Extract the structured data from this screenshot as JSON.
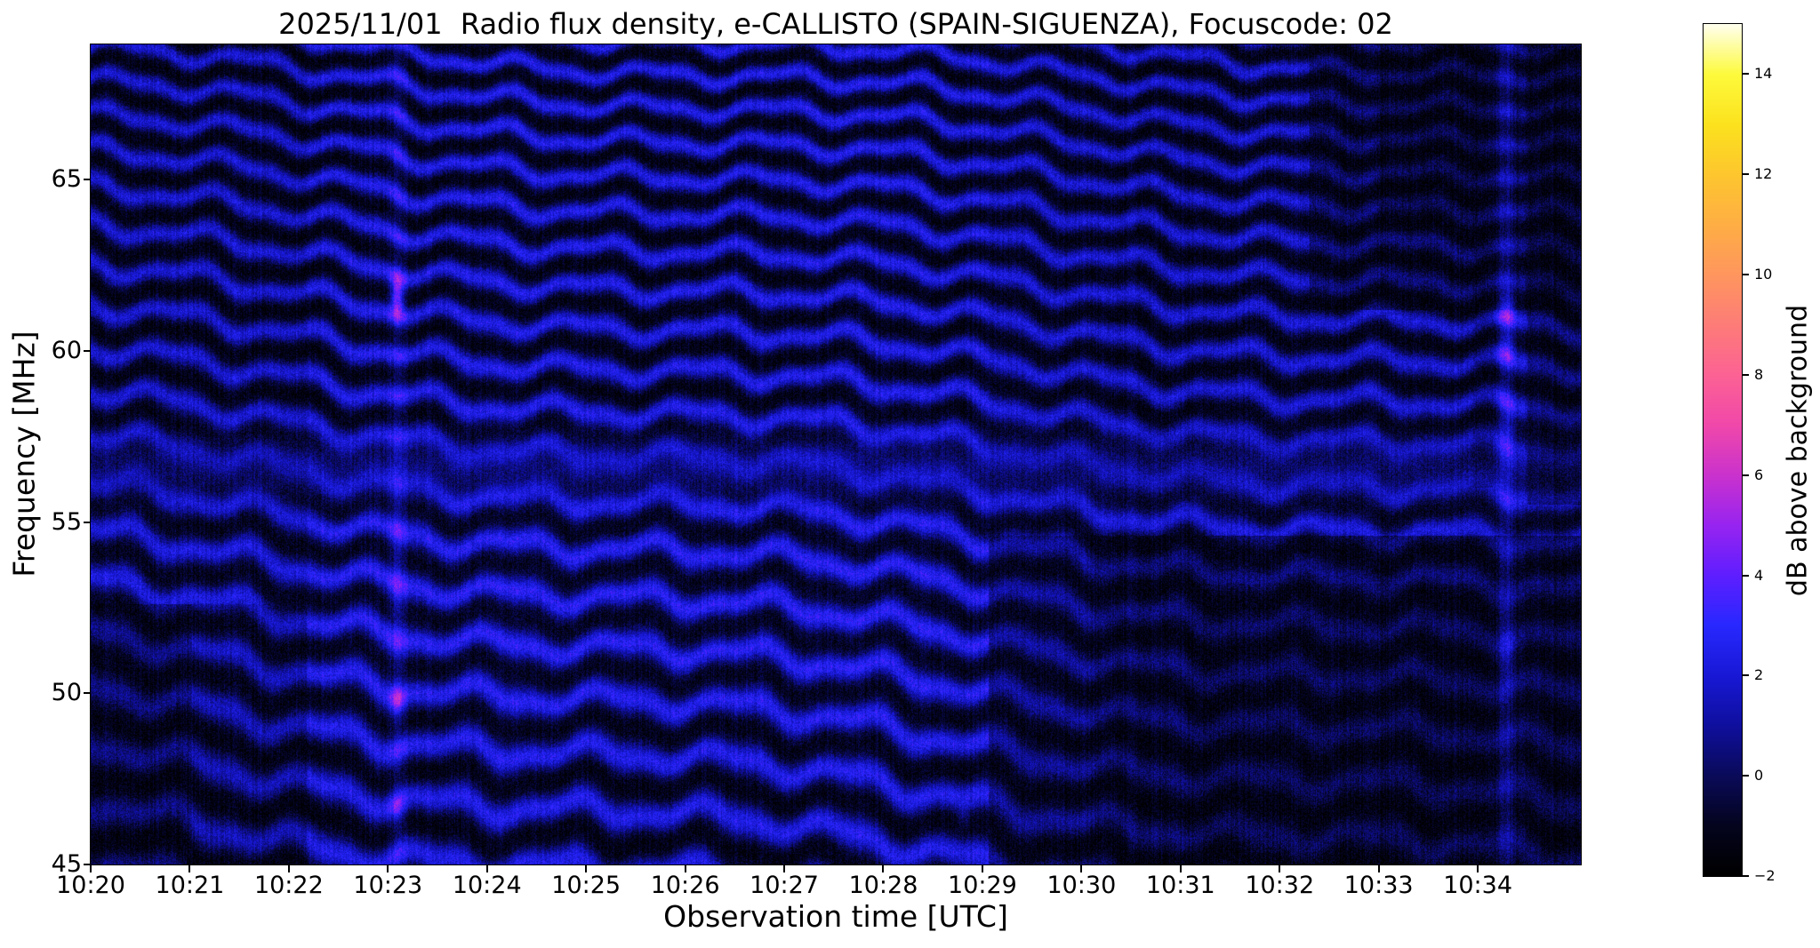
{
  "figure": {
    "background": "#ffffff",
    "text_color": "#000000"
  },
  "chart_data": {
    "type": "heatmap",
    "title": "2025/11/01  Radio flux density, e-CALLISTO (SPAIN-SIGUENZA), Focuscode: 02",
    "xlabel": "Observation time [UTC]",
    "ylabel": "Frequency [MHz]",
    "x_ticks": [
      "10:20",
      "10:21",
      "10:22",
      "10:23",
      "10:24",
      "10:25",
      "10:26",
      "10:27",
      "10:28",
      "10:29",
      "10:30",
      "10:31",
      "10:32",
      "10:33",
      "10:34"
    ],
    "x_start": "10:20",
    "x_span_min": 15.04,
    "y_ticks": [
      45,
      50,
      55,
      60,
      65
    ],
    "y_range": [
      45,
      68.95
    ],
    "grid": false,
    "legend": "none",
    "colorbar": {
      "label": "dB above background",
      "range": [
        -2,
        15
      ],
      "ticks": [
        14,
        12,
        10,
        8,
        6,
        4,
        2,
        0,
        -2
      ],
      "tick_labels": [
        "14",
        "12",
        "10",
        "8",
        "6",
        "4",
        "2",
        "0",
        "−2"
      ],
      "position": "right",
      "colormap_stops": [
        [
          -2,
          0,
          0,
          0
        ],
        [
          -1,
          4,
          4,
          30
        ],
        [
          0,
          10,
          10,
          90
        ],
        [
          1,
          15,
          15,
          158
        ],
        [
          2,
          24,
          24,
          214
        ],
        [
          3,
          40,
          40,
          255
        ],
        [
          4,
          95,
          30,
          255
        ],
        [
          5,
          152,
          36,
          240
        ],
        [
          6,
          202,
          50,
          205
        ],
        [
          7,
          240,
          72,
          170
        ],
        [
          8,
          252,
          98,
          148
        ],
        [
          9,
          253,
          124,
          120
        ],
        [
          10,
          254,
          150,
          94
        ],
        [
          11,
          254,
          174,
          68
        ],
        [
          12,
          253,
          198,
          46
        ],
        [
          13,
          252,
          226,
          30
        ],
        [
          14,
          253,
          250,
          60
        ],
        [
          15,
          255,
          255,
          238
        ]
      ]
    },
    "content_description": "Dynamic radio spectrogram dominated by wavy quasi-horizontal interference fringes (~1 MHz spacing) drifting slowly down in frequency with time, rendered in dark blue on near-black; no solar burst present.",
    "fringes": {
      "spacing_mhz_top": 0.97,
      "spacing_mhz_bottom": 1.32,
      "drift_mhz_per_min": -0.26,
      "base_db": -1.35,
      "amp_db": 3.35,
      "gamma": 1.35,
      "noise_db": 0.95,
      "column_noise_db": 0.45,
      "gain_pivot_db": -1.6,
      "wiggles": [
        {
          "amp_mhz": 0.2,
          "period_min": 1.35,
          "shear": 0.012
        },
        {
          "amp_mhz": 0.09,
          "period_min": 0.59,
          "shear": 0.006
        },
        {
          "amp_mhz": 0.24,
          "period_min": 7.4,
          "shear": 0.0015
        }
      ],
      "haze_band": {
        "center_mhz": 56.6,
        "sigma_mhz": 0.95,
        "contrast_loss": 0.6,
        "lift_db": 0.35
      },
      "bright_band": {
        "center_mhz": 52.5,
        "sigma_mhz": 4.0,
        "lift_db": 0.3
      }
    },
    "regions": [
      {
        "t0": 0.0,
        "t1": 1.02,
        "f0": 45.0,
        "f1": 52.6,
        "gain": 0.6
      },
      {
        "t0": 1.02,
        "t1": 2.18,
        "f0": 45.0,
        "f1": 52.6,
        "gain": 0.85
      },
      {
        "t0": 2.18,
        "t1": 9.06,
        "f0": 45.0,
        "f1": 69.0,
        "gain": 1.12
      },
      {
        "t0": 9.06,
        "t1": 15.05,
        "f0": 45.0,
        "f1": 54.6,
        "gain": 0.68
      },
      {
        "t0": 10.13,
        "t1": 15.05,
        "f0": 45.0,
        "f1": 54.6,
        "gain": 0.78
      },
      {
        "t0": 11.12,
        "t1": 15.05,
        "f0": 45.0,
        "f1": 53.2,
        "gain": 0.82
      },
      {
        "t0": 12.3,
        "t1": 15.05,
        "f0": 61.2,
        "f1": 69.0,
        "gain": 0.58
      },
      {
        "t0": 13.0,
        "t1": 14.0,
        "f0": 63.5,
        "f1": 69.0,
        "gain": 0.75
      },
      {
        "t0": 14.5,
        "t1": 15.05,
        "f0": 55.5,
        "f1": 69.0,
        "gain": 0.65
      },
      {
        "t0": 13.95,
        "t1": 14.16,
        "f0": 56.0,
        "f1": 69.0,
        "gain": 0.8
      }
    ],
    "vertical_streaks": [
      {
        "time_min": 3.09,
        "sigma_s": 4.5,
        "amp_db": 1.1
      },
      {
        "time_min": 14.29,
        "sigma_s": 5.0,
        "amp_db": 1.5
      }
    ],
    "blobs": [
      {
        "time_min": 3.09,
        "freq_mhz": 61.6,
        "sigma_s": 4.0,
        "sigma_mhz": 0.6,
        "amp_db": 4.5
      },
      {
        "time_min": 3.09,
        "freq_mhz": 53.5,
        "sigma_s": 4.0,
        "sigma_mhz": 2.5,
        "amp_db": 0.8
      },
      {
        "time_min": 3.09,
        "freq_mhz": 49.8,
        "sigma_s": 4.0,
        "sigma_mhz": 0.5,
        "amp_db": 2.2
      },
      {
        "time_min": 3.09,
        "freq_mhz": 46.6,
        "sigma_s": 4.0,
        "sigma_mhz": 0.45,
        "amp_db": 1.6
      },
      {
        "time_min": 14.29,
        "freq_mhz": 61.2,
        "sigma_s": 5.0,
        "sigma_mhz": 0.55,
        "amp_db": 2.4
      },
      {
        "time_min": 14.29,
        "freq_mhz": 60.1,
        "sigma_s": 5.0,
        "sigma_mhz": 0.45,
        "amp_db": 2.0
      },
      {
        "time_min": 14.29,
        "freq_mhz": 57.8,
        "sigma_s": 5.0,
        "sigma_mhz": 0.8,
        "amp_db": 1.3
      },
      {
        "time_min": 14.29,
        "freq_mhz": 51.3,
        "sigma_s": 5.0,
        "sigma_mhz": 0.8,
        "amp_db": 1.2
      },
      {
        "time_min": 8.8,
        "freq_mhz": 46.4,
        "sigma_s": 3.5,
        "sigma_mhz": 0.4,
        "amp_db": 1.6
      }
    ]
  }
}
